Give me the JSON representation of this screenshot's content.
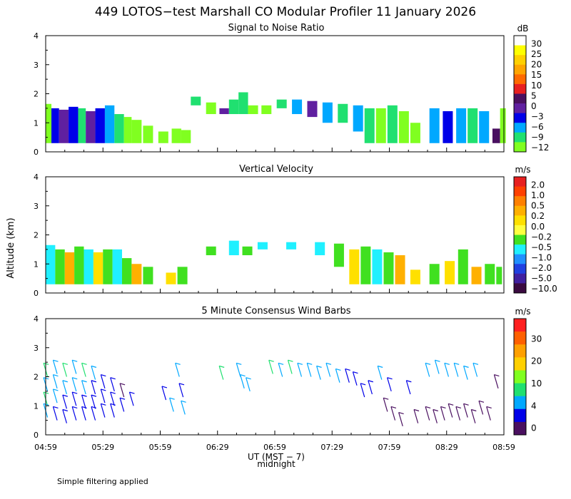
{
  "title": "449 LOTOS−test Marshall CO Modular Profiler 11 January 2026",
  "ylabel": "Altitude (km)",
  "xlabel": "UT  (MST − 7)",
  "midnight_label": "midnight",
  "footnote": "Simple filtering applied",
  "x_ticks": [
    "04:59",
    "05:29",
    "05:59",
    "06:29",
    "06:59",
    "07:29",
    "07:59",
    "08:29",
    "08:59"
  ],
  "chart_data": [
    {
      "type": "heatmap",
      "title": "Signal to Noise Ratio",
      "units": "dB",
      "xlim_minutes": [
        299,
        539
      ],
      "ylim": [
        0,
        4
      ],
      "y_ticks": [
        "0",
        "1",
        "2",
        "3",
        "4"
      ],
      "colorbar": {
        "labels": [
          "30",
          "25",
          "20",
          "15",
          "10",
          "5",
          "0",
          "−3",
          "−6",
          "−9",
          "−12"
        ],
        "colors": [
          "#ffffff",
          "#ffff00",
          "#ffd000",
          "#ffa500",
          "#ff6a00",
          "#e82020",
          "#4a1060",
          "#6020a0",
          "#0000e8",
          "#00a8ff",
          "#20e070",
          "#80ff20"
        ]
      },
      "columns": [
        {
          "t": 299,
          "ymin": 0.3,
          "ymax": 1.65,
          "color": "#80ff20"
        },
        {
          "t": 302,
          "ymin": 0.3,
          "ymax": 1.5,
          "color": "#0000e8"
        },
        {
          "t": 306,
          "ymin": 0.3,
          "ymax": 1.45,
          "color": "#6020a0"
        },
        {
          "t": 311,
          "ymin": 0.3,
          "ymax": 1.55,
          "color": "#0000e8"
        },
        {
          "t": 316,
          "ymin": 0.3,
          "ymax": 1.5,
          "color": "#20e070"
        },
        {
          "t": 320,
          "ymin": 0.3,
          "ymax": 1.4,
          "color": "#6020a0"
        },
        {
          "t": 325,
          "ymin": 0.3,
          "ymax": 1.5,
          "color": "#0000e8"
        },
        {
          "t": 330,
          "ymin": 0.3,
          "ymax": 1.6,
          "color": "#00a8ff"
        },
        {
          "t": 335,
          "ymin": 0.3,
          "ymax": 1.3,
          "color": "#20e070"
        },
        {
          "t": 340,
          "ymin": 0.3,
          "ymax": 1.2,
          "color": "#80ff20"
        },
        {
          "t": 344,
          "ymin": 0.3,
          "ymax": 1.1,
          "color": "#80ff20"
        },
        {
          "t": 350,
          "ymin": 0.3,
          "ymax": 0.9,
          "color": "#80ff20"
        },
        {
          "t": 358,
          "ymin": 0.3,
          "ymax": 0.7,
          "color": "#80ff20"
        },
        {
          "t": 365,
          "ymin": 0.3,
          "ymax": 0.8,
          "color": "#80ff20"
        },
        {
          "t": 370,
          "ymin": 0.3,
          "ymax": 0.75,
          "color": "#80ff20"
        },
        {
          "t": 375,
          "ymin": 1.6,
          "ymax": 1.9,
          "color": "#20e070"
        },
        {
          "t": 383,
          "ymin": 1.3,
          "ymax": 1.7,
          "color": "#80ff20"
        },
        {
          "t": 390,
          "ymin": 1.3,
          "ymax": 1.5,
          "color": "#6020a0"
        },
        {
          "t": 395,
          "ymin": 1.3,
          "ymax": 1.8,
          "color": "#20e070"
        },
        {
          "t": 400,
          "ymin": 1.3,
          "ymax": 2.05,
          "color": "#20e070"
        },
        {
          "t": 405,
          "ymin": 1.3,
          "ymax": 1.6,
          "color": "#80ff20"
        },
        {
          "t": 412,
          "ymin": 1.3,
          "ymax": 1.6,
          "color": "#80ff20"
        },
        {
          "t": 420,
          "ymin": 1.5,
          "ymax": 1.8,
          "color": "#20e070"
        },
        {
          "t": 428,
          "ymin": 1.3,
          "ymax": 1.8,
          "color": "#00a8ff"
        },
        {
          "t": 436,
          "ymin": 1.2,
          "ymax": 1.75,
          "color": "#6020a0"
        },
        {
          "t": 444,
          "ymin": 1.0,
          "ymax": 1.7,
          "color": "#00a8ff"
        },
        {
          "t": 452,
          "ymin": 1.0,
          "ymax": 1.65,
          "color": "#20e070"
        },
        {
          "t": 460,
          "ymin": 0.7,
          "ymax": 1.6,
          "color": "#00a8ff"
        },
        {
          "t": 466,
          "ymin": 0.3,
          "ymax": 1.5,
          "color": "#20e070"
        },
        {
          "t": 472,
          "ymin": 0.3,
          "ymax": 1.5,
          "color": "#80ff20"
        },
        {
          "t": 478,
          "ymin": 0.3,
          "ymax": 1.6,
          "color": "#20e070"
        },
        {
          "t": 484,
          "ymin": 0.3,
          "ymax": 1.4,
          "color": "#80ff20"
        },
        {
          "t": 490,
          "ymin": 0.3,
          "ymax": 1.0,
          "color": "#80ff20"
        },
        {
          "t": 500,
          "ymin": 0.3,
          "ymax": 1.5,
          "color": "#00a8ff"
        },
        {
          "t": 507,
          "ymin": 0.3,
          "ymax": 1.4,
          "color": "#0000e8"
        },
        {
          "t": 514,
          "ymin": 0.3,
          "ymax": 1.5,
          "color": "#00a8ff"
        },
        {
          "t": 520,
          "ymin": 0.3,
          "ymax": 1.5,
          "color": "#20e070"
        },
        {
          "t": 526,
          "ymin": 0.3,
          "ymax": 1.4,
          "color": "#00a8ff"
        },
        {
          "t": 533,
          "ymin": 0.3,
          "ymax": 0.8,
          "color": "#4a1060"
        },
        {
          "t": 537,
          "ymin": 0.3,
          "ymax": 1.5,
          "color": "#80ff20"
        }
      ]
    },
    {
      "type": "heatmap",
      "title": "Vertical Velocity",
      "units": "m/s",
      "xlim_minutes": [
        299,
        539
      ],
      "ylim": [
        0,
        4
      ],
      "y_ticks": [
        "0",
        "1",
        "2",
        "3",
        "4"
      ],
      "colorbar": {
        "labels": [
          "2.0",
          "1.0",
          "0.5",
          "0.2",
          "0.0",
          "−0.2",
          "−0.5",
          "−1.0",
          "−2.0",
          "−5.0",
          "−10.0"
        ],
        "colors": [
          "#e82020",
          "#ff4000",
          "#ff8000",
          "#ffb000",
          "#ffe000",
          "#ffff40",
          "#40e020",
          "#20f0ff",
          "#2090ff",
          "#2040e0",
          "#4020a0",
          "#3a0a40"
        ]
      },
      "columns": [
        {
          "t": 299,
          "ymin": 0.3,
          "ymax": 1.65,
          "color": "#20f0ff"
        },
        {
          "t": 304,
          "ymin": 0.3,
          "ymax": 1.5,
          "color": "#40e020"
        },
        {
          "t": 309,
          "ymin": 0.3,
          "ymax": 1.4,
          "color": "#ffb000"
        },
        {
          "t": 314,
          "ymin": 0.3,
          "ymax": 1.6,
          "color": "#40e020"
        },
        {
          "t": 319,
          "ymin": 0.3,
          "ymax": 1.5,
          "color": "#20f0ff"
        },
        {
          "t": 324,
          "ymin": 0.3,
          "ymax": 1.4,
          "color": "#ffe000"
        },
        {
          "t": 329,
          "ymin": 0.3,
          "ymax": 1.5,
          "color": "#40e020"
        },
        {
          "t": 334,
          "ymin": 0.3,
          "ymax": 1.5,
          "color": "#20f0ff"
        },
        {
          "t": 339,
          "ymin": 0.3,
          "ymax": 1.2,
          "color": "#40e020"
        },
        {
          "t": 344,
          "ymin": 0.3,
          "ymax": 1.0,
          "color": "#ffb000"
        },
        {
          "t": 350,
          "ymin": 0.3,
          "ymax": 0.9,
          "color": "#40e020"
        },
        {
          "t": 362,
          "ymin": 0.3,
          "ymax": 0.7,
          "color": "#ffe000"
        },
        {
          "t": 368,
          "ymin": 0.3,
          "ymax": 0.9,
          "color": "#40e020"
        },
        {
          "t": 383,
          "ymin": 1.3,
          "ymax": 1.6,
          "color": "#40e020"
        },
        {
          "t": 395,
          "ymin": 1.3,
          "ymax": 1.8,
          "color": "#20f0ff"
        },
        {
          "t": 402,
          "ymin": 1.3,
          "ymax": 1.6,
          "color": "#40e020"
        },
        {
          "t": 410,
          "ymin": 1.5,
          "ymax": 1.75,
          "color": "#20f0ff"
        },
        {
          "t": 425,
          "ymin": 1.5,
          "ymax": 1.75,
          "color": "#20f0ff"
        },
        {
          "t": 440,
          "ymin": 1.3,
          "ymax": 1.75,
          "color": "#20f0ff"
        },
        {
          "t": 450,
          "ymin": 0.9,
          "ymax": 1.7,
          "color": "#40e020"
        },
        {
          "t": 458,
          "ymin": 0.3,
          "ymax": 1.5,
          "color": "#ffe000"
        },
        {
          "t": 464,
          "ymin": 0.3,
          "ymax": 1.6,
          "color": "#40e020"
        },
        {
          "t": 470,
          "ymin": 0.3,
          "ymax": 1.5,
          "color": "#20f0ff"
        },
        {
          "t": 476,
          "ymin": 0.3,
          "ymax": 1.4,
          "color": "#40e020"
        },
        {
          "t": 482,
          "ymin": 0.3,
          "ymax": 1.3,
          "color": "#ffb000"
        },
        {
          "t": 490,
          "ymin": 0.3,
          "ymax": 0.8,
          "color": "#ffe000"
        },
        {
          "t": 500,
          "ymin": 0.3,
          "ymax": 1.0,
          "color": "#40e020"
        },
        {
          "t": 508,
          "ymin": 0.3,
          "ymax": 1.1,
          "color": "#ffe000"
        },
        {
          "t": 515,
          "ymin": 0.3,
          "ymax": 1.5,
          "color": "#40e020"
        },
        {
          "t": 522,
          "ymin": 0.3,
          "ymax": 0.9,
          "color": "#ffb000"
        },
        {
          "t": 529,
          "ymin": 0.3,
          "ymax": 1.0,
          "color": "#40e020"
        },
        {
          "t": 535,
          "ymin": 0.3,
          "ymax": 0.9,
          "color": "#40e020"
        }
      ]
    },
    {
      "type": "scatter",
      "title": "5 Minute Consensus Wind Barbs",
      "units": "m/s",
      "xlim_minutes": [
        299,
        539
      ],
      "ylim": [
        0,
        4
      ],
      "y_ticks": [
        "0",
        "1",
        "2",
        "3",
        "4"
      ],
      "colorbar": {
        "labels": [
          "30",
          "20",
          "10",
          "4",
          "0"
        ],
        "colors": [
          "#ff2020",
          "#ff6000",
          "#ffa000",
          "#ffd000",
          "#80ff20",
          "#20e070",
          "#00a8ff",
          "#0000e8",
          "#4a1060"
        ]
      },
      "barbs": [
        {
          "t": 300,
          "h": 2.0,
          "speed": 12
        },
        {
          "t": 300,
          "h": 1.5,
          "speed": 8
        },
        {
          "t": 300,
          "h": 1.0,
          "speed": 10
        },
        {
          "t": 300,
          "h": 0.6,
          "speed": 6
        },
        {
          "t": 305,
          "h": 2.1,
          "speed": 9
        },
        {
          "t": 305,
          "h": 1.6,
          "speed": 8
        },
        {
          "t": 305,
          "h": 1.1,
          "speed": 6
        },
        {
          "t": 305,
          "h": 0.5,
          "speed": 5
        },
        {
          "t": 310,
          "h": 2.0,
          "speed": 11
        },
        {
          "t": 310,
          "h": 1.4,
          "speed": 7
        },
        {
          "t": 310,
          "h": 0.9,
          "speed": 5
        },
        {
          "t": 310,
          "h": 0.4,
          "speed": 3
        },
        {
          "t": 315,
          "h": 2.1,
          "speed": 8
        },
        {
          "t": 315,
          "h": 1.5,
          "speed": 6
        },
        {
          "t": 315,
          "h": 1.0,
          "speed": 5
        },
        {
          "t": 315,
          "h": 0.5,
          "speed": 3
        },
        {
          "t": 320,
          "h": 2.0,
          "speed": 10
        },
        {
          "t": 320,
          "h": 1.4,
          "speed": 7
        },
        {
          "t": 320,
          "h": 0.9,
          "speed": 4
        },
        {
          "t": 320,
          "h": 0.5,
          "speed": 2
        },
        {
          "t": 325,
          "h": 1.9,
          "speed": 9
        },
        {
          "t": 325,
          "h": 1.4,
          "speed": 5
        },
        {
          "t": 325,
          "h": 0.9,
          "speed": 3
        },
        {
          "t": 325,
          "h": 0.5,
          "speed": 2
        },
        {
          "t": 330,
          "h": 1.6,
          "speed": 3
        },
        {
          "t": 330,
          "h": 1.1,
          "speed": 2
        },
        {
          "t": 330,
          "h": 0.6,
          "speed": 3
        },
        {
          "t": 335,
          "h": 1.5,
          "speed": 2
        },
        {
          "t": 335,
          "h": 1.0,
          "speed": 3
        },
        {
          "t": 335,
          "h": 0.6,
          "speed": 2
        },
        {
          "t": 340,
          "h": 1.3,
          "speed": 1
        },
        {
          "t": 340,
          "h": 0.8,
          "speed": 2
        },
        {
          "t": 345,
          "h": 1.0,
          "speed": 2
        },
        {
          "t": 362,
          "h": 1.2,
          "speed": 5
        },
        {
          "t": 366,
          "h": 0.8,
          "speed": 6
        },
        {
          "t": 369,
          "h": 2.0,
          "speed": 8
        },
        {
          "t": 371,
          "h": 1.3,
          "speed": 5
        },
        {
          "t": 372,
          "h": 0.7,
          "speed": 6
        },
        {
          "t": 392,
          "h": 1.9,
          "speed": 10
        },
        {
          "t": 401,
          "h": 2.0,
          "speed": 9
        },
        {
          "t": 403,
          "h": 1.6,
          "speed": 8
        },
        {
          "t": 406,
          "h": 1.5,
          "speed": 9
        },
        {
          "t": 418,
          "h": 2.1,
          "speed": 10
        },
        {
          "t": 423,
          "h": 2.0,
          "speed": 9
        },
        {
          "t": 428,
          "h": 2.1,
          "speed": 11
        },
        {
          "t": 433,
          "h": 2.0,
          "speed": 8
        },
        {
          "t": 438,
          "h": 2.0,
          "speed": 9
        },
        {
          "t": 443,
          "h": 1.9,
          "speed": 8
        },
        {
          "t": 448,
          "h": 2.0,
          "speed": 9
        },
        {
          "t": 453,
          "h": 1.8,
          "speed": 8
        },
        {
          "t": 458,
          "h": 1.8,
          "speed": 3
        },
        {
          "t": 462,
          "h": 1.7,
          "speed": 3
        },
        {
          "t": 466,
          "h": 1.3,
          "speed": 2
        },
        {
          "t": 470,
          "h": 1.4,
          "speed": 3
        },
        {
          "t": 475,
          "h": 1.9,
          "speed": 8
        },
        {
          "t": 480,
          "h": 1.5,
          "speed": 2
        },
        {
          "t": 478,
          "h": 0.8,
          "speed": 1
        },
        {
          "t": 482,
          "h": 0.5,
          "speed": 1
        },
        {
          "t": 486,
          "h": 0.3,
          "speed": 1
        },
        {
          "t": 490,
          "h": 1.4,
          "speed": 2
        },
        {
          "t": 494,
          "h": 0.4,
          "speed": 1
        },
        {
          "t": 500,
          "h": 2.0,
          "speed": 8
        },
        {
          "t": 505,
          "h": 2.1,
          "speed": 9
        },
        {
          "t": 510,
          "h": 2.0,
          "speed": 9
        },
        {
          "t": 515,
          "h": 2.0,
          "speed": 8
        },
        {
          "t": 520,
          "h": 1.9,
          "speed": 9
        },
        {
          "t": 525,
          "h": 2.0,
          "speed": 9
        },
        {
          "t": 500,
          "h": 0.5,
          "speed": 1
        },
        {
          "t": 504,
          "h": 0.4,
          "speed": 1
        },
        {
          "t": 508,
          "h": 0.5,
          "speed": 1
        },
        {
          "t": 512,
          "h": 0.6,
          "speed": 1
        },
        {
          "t": 516,
          "h": 0.5,
          "speed": 1
        },
        {
          "t": 520,
          "h": 0.6,
          "speed": 1
        },
        {
          "t": 524,
          "h": 0.4,
          "speed": 1
        },
        {
          "t": 528,
          "h": 0.7,
          "speed": 1
        },
        {
          "t": 532,
          "h": 0.5,
          "speed": 1
        },
        {
          "t": 536,
          "h": 1.6,
          "speed": 1
        }
      ]
    }
  ]
}
